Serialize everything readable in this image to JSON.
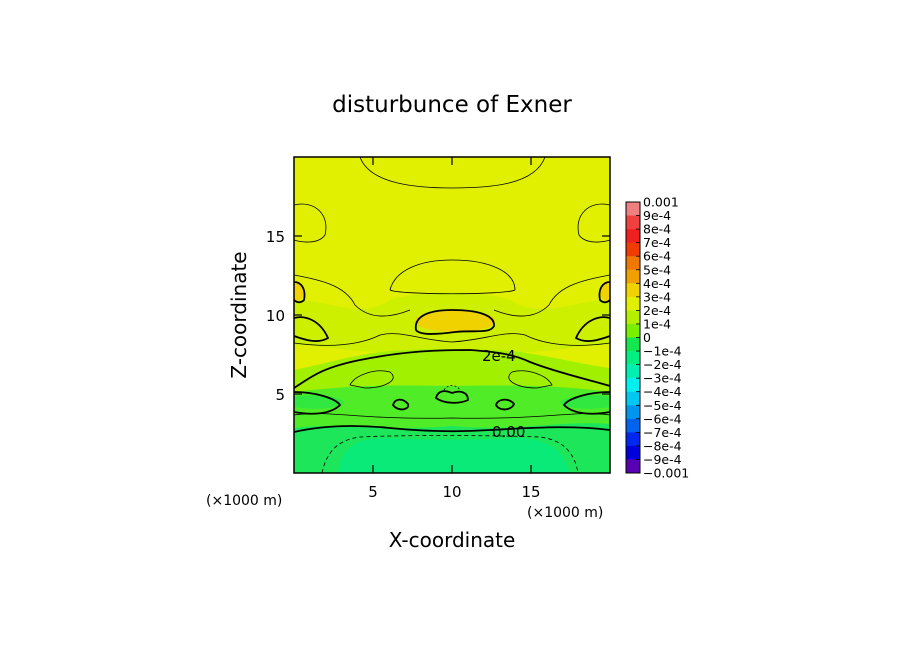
{
  "chart_data": {
    "type": "heatmap",
    "title": "disturbunce of Exner",
    "xlabel": "X-coordinate",
    "ylabel": "Z-coordinate",
    "x_unit": "(×1000 m)",
    "y_unit": "(×1000 m)",
    "xlim": [
      0,
      20
    ],
    "ylim": [
      0,
      20
    ],
    "x_ticks": [
      "5",
      "10",
      "15"
    ],
    "y_ticks": [
      "5",
      "10",
      "15"
    ],
    "contour_labels": [
      "2e-4",
      "0.00"
    ],
    "colorbar": {
      "labels": [
        "0.001",
        "9e-4",
        "8e-4",
        "7e-4",
        "6e-4",
        "5e-4",
        "4e-4",
        "3e-4",
        "2e-4",
        "1e-4",
        "0",
        "−1e-4",
        "−2e-4",
        "−3e-4",
        "−4e-4",
        "−5e-4",
        "−6e-4",
        "−7e-4",
        "−8e-4",
        "−9e-4",
        "−0.001"
      ],
      "colors": [
        "#f08080",
        "#f04040",
        "#f02020",
        "#f03c00",
        "#f07800",
        "#f0a000",
        "#f0d200",
        "#e1f000",
        "#b4f000",
        "#78f000",
        "#14e650",
        "#00f082",
        "#00f0b4",
        "#00f0f0",
        "#00c8f0",
        "#0096f0",
        "#0064f0",
        "#0028f0",
        "#0000dc",
        "#5a00b4"
      ]
    }
  }
}
